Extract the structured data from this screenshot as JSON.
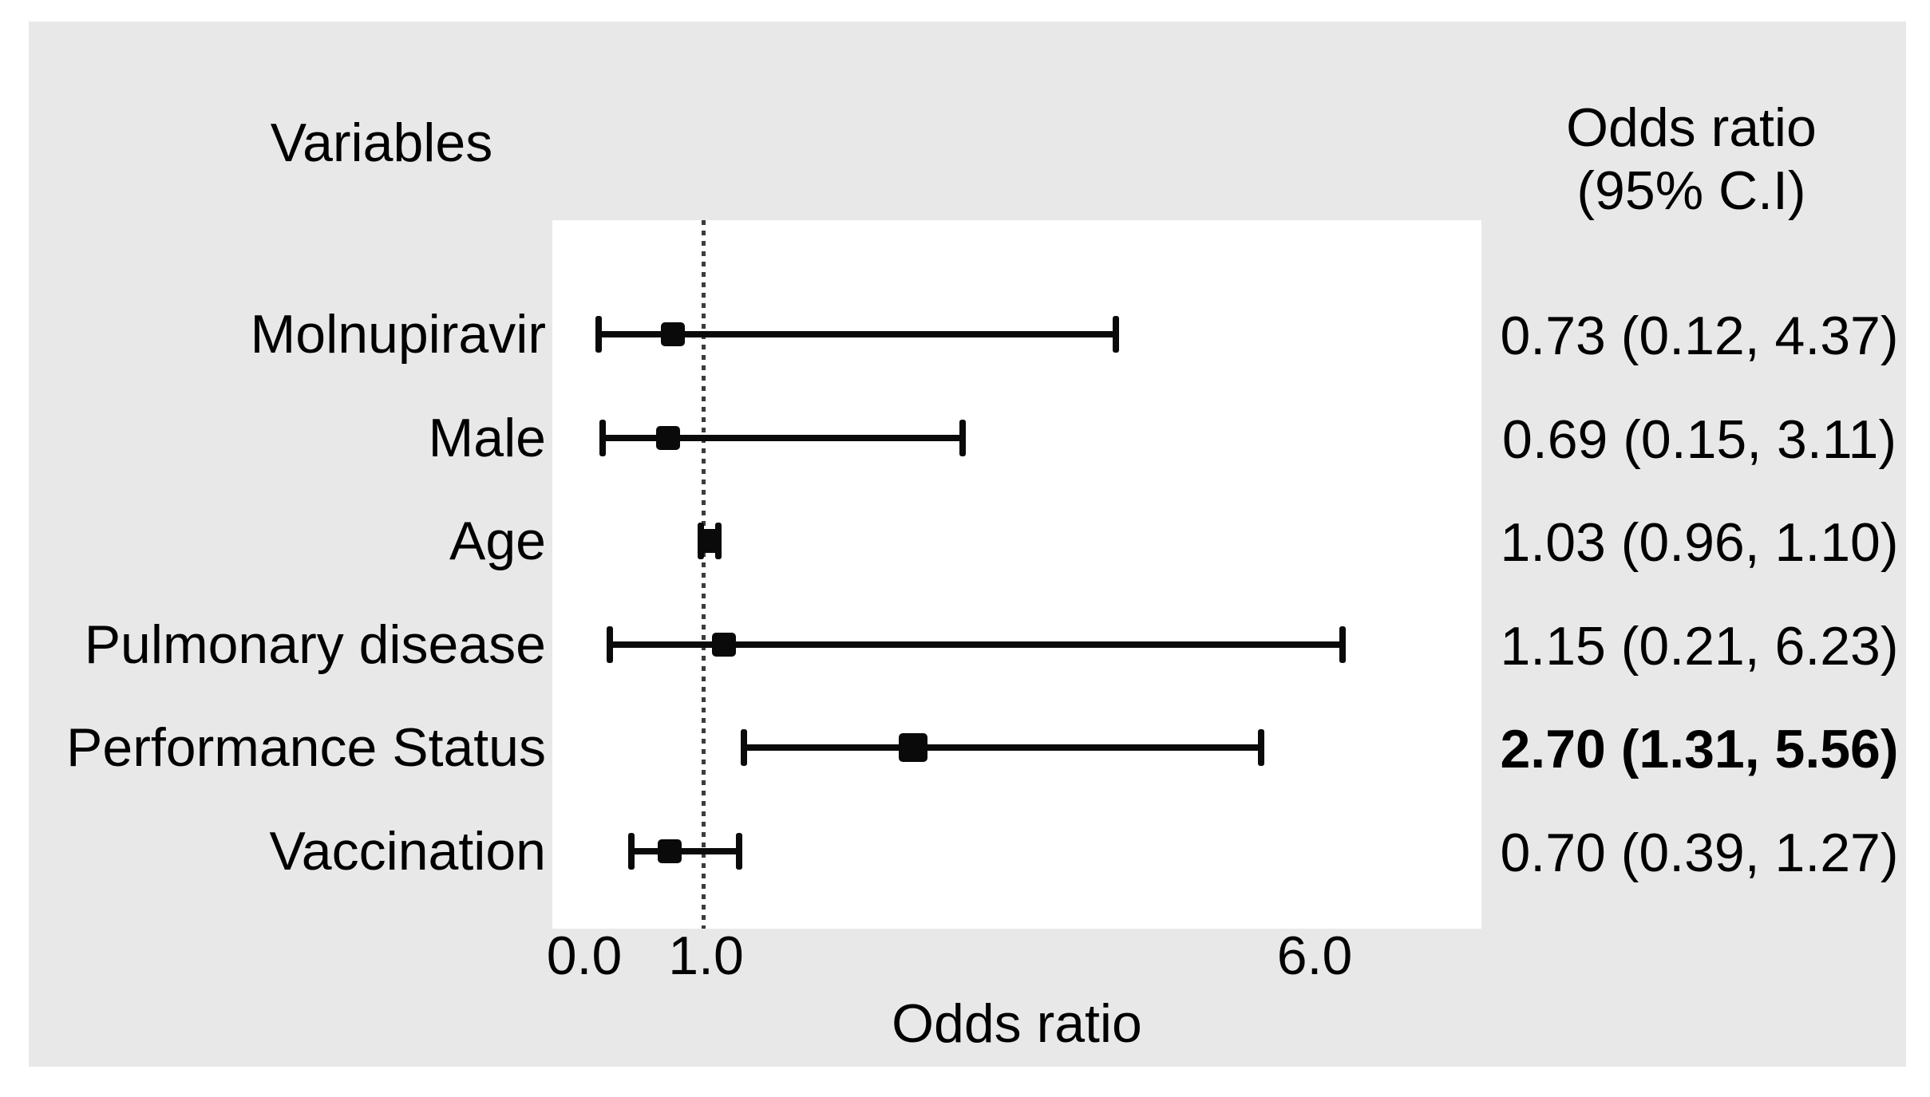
{
  "page": {
    "background": "#ffffff",
    "panel_background": "#e8e8e8",
    "plot_background": "#ffffff",
    "ink_color": "#000000",
    "reference_line_color": "#3c3c3c"
  },
  "headers": {
    "left": "Variables",
    "right_line1": "Odds ratio",
    "right_line2": "(95% C.I)"
  },
  "chart_data": {
    "type": "forest",
    "orientation": "horizontal",
    "title": "",
    "xlabel": "Odds ratio",
    "x_ticks": [
      0.0,
      1.0,
      6.0
    ],
    "x_tick_labels": [
      "0.0",
      "1.0",
      "6.0"
    ],
    "xlim": [
      -0.26,
      7.37
    ],
    "reference_line": 1.0,
    "grid": false,
    "rows": [
      {
        "label": "Molnupiravir",
        "or": 0.73,
        "ci_low": 0.12,
        "ci_high": 4.37,
        "display": "0.73 (0.12, 4.37)",
        "bold": false
      },
      {
        "label": "Male",
        "or": 0.69,
        "ci_low": 0.15,
        "ci_high": 3.11,
        "display": "0.69 (0.15, 3.11)",
        "bold": false
      },
      {
        "label": "Age",
        "or": 1.03,
        "ci_low": 0.96,
        "ci_high": 1.1,
        "display": "1.03 (0.96, 1.10)",
        "bold": false
      },
      {
        "label": "Pulmonary disease",
        "or": 1.15,
        "ci_low": 0.21,
        "ci_high": 6.23,
        "display": "1.15 (0.21, 6.23)",
        "bold": false
      },
      {
        "label": "Performance Status",
        "or": 2.7,
        "ci_low": 1.31,
        "ci_high": 5.56,
        "display": "2.70 (1.31, 5.56)",
        "bold": true
      },
      {
        "label": "Vaccination",
        "or": 0.7,
        "ci_low": 0.39,
        "ci_high": 1.27,
        "display": "0.70 (0.39, 1.27)",
        "bold": false
      }
    ]
  }
}
